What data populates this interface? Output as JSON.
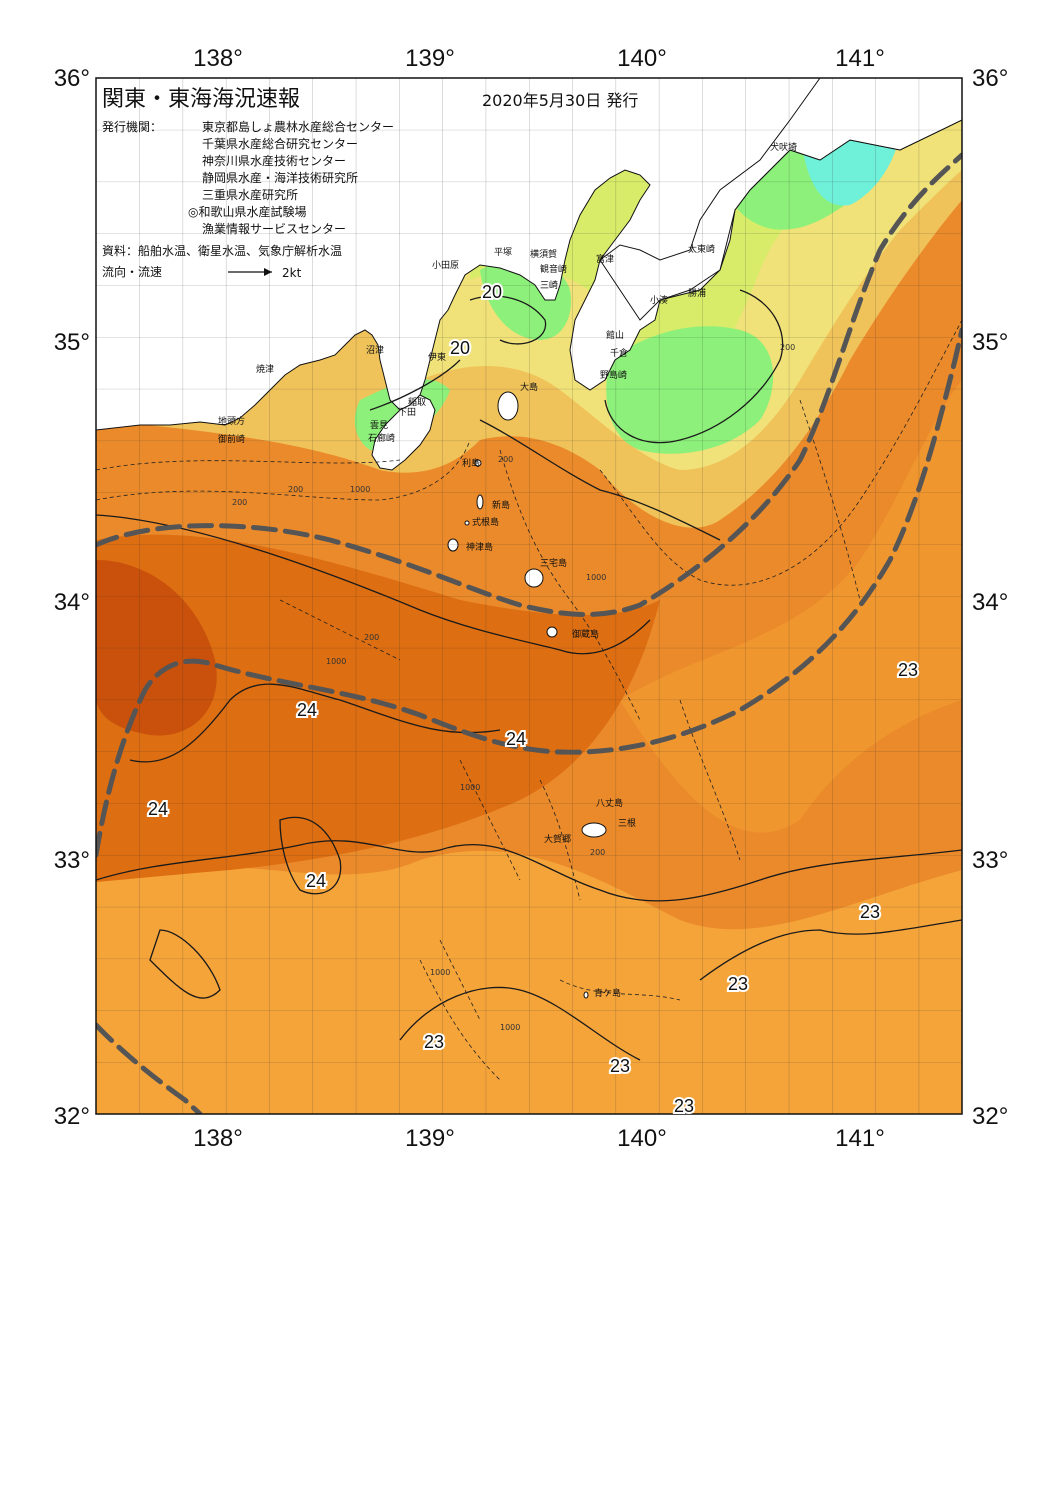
{
  "header": {
    "title": "関東・東海海況速報",
    "date": "2020年5月30日 発行",
    "publisher_label": "発行機関：",
    "publishers": [
      "東京都島しょ農林水産総合センター",
      "千葉県水産総合研究センター",
      "神奈川県水産技術センター",
      "静岡県水産・海洋技術研究所",
      "三重県水産研究所",
      "◎和歌山県水産試験場",
      "漁業情報サービスセンター"
    ],
    "sources": "資料：船舶水温、衛星水温、気象庁解析水温",
    "flow_label": "流向・流速",
    "flow_scale": "2kt"
  },
  "axes": {
    "lon_top": [
      "138°",
      "139°",
      "140°",
      "141°"
    ],
    "lon_bottom": [
      "138°",
      "139°",
      "140°",
      "141°"
    ],
    "lat_left": [
      "36°",
      "35°",
      "34°",
      "33°",
      "32°"
    ],
    "lat_right": [
      "36°",
      "35°",
      "34°",
      "33°",
      "32°"
    ]
  },
  "places": [
    "犬吠埼",
    "太東崎",
    "勝浦",
    "小湊",
    "富津",
    "館山",
    "千倉",
    "野島崎",
    "横須賀",
    "観音崎",
    "三崎",
    "平塚",
    "小田原",
    "沼津",
    "伊東",
    "稲取",
    "下田",
    "雲見",
    "石廊崎",
    "焼津",
    "地頭方",
    "御前崎",
    "大島",
    "利島",
    "新島",
    "式根島",
    "神津島",
    "三宅島",
    "御蔵島",
    "八丈島",
    "三根",
    "大賀郷",
    "青ケ島"
  ],
  "isotherm_labels": [
    "20",
    "20",
    "24",
    "24",
    "24",
    "24",
    "23",
    "23",
    "23",
    "23",
    "23",
    "23"
  ],
  "depth_labels": [
    "200",
    "200",
    "1000",
    "200",
    "1000",
    "200",
    "1000",
    "1000",
    "200",
    "1000",
    "1000",
    "200"
  ],
  "colors": {
    "land": "#ffffff",
    "cyan_water": "#6ff0d8",
    "green_water": "#8cf07a",
    "yellow_green_water": "#d8ec6a",
    "yellow_water": "#f0e278",
    "light_orange_water": "#f5a43a",
    "orange_water": "#ea8a2a",
    "dark_orange_water": "#dd6e12",
    "deep_orange_water": "#c9510c",
    "kuroshio_axis": "#555555"
  }
}
